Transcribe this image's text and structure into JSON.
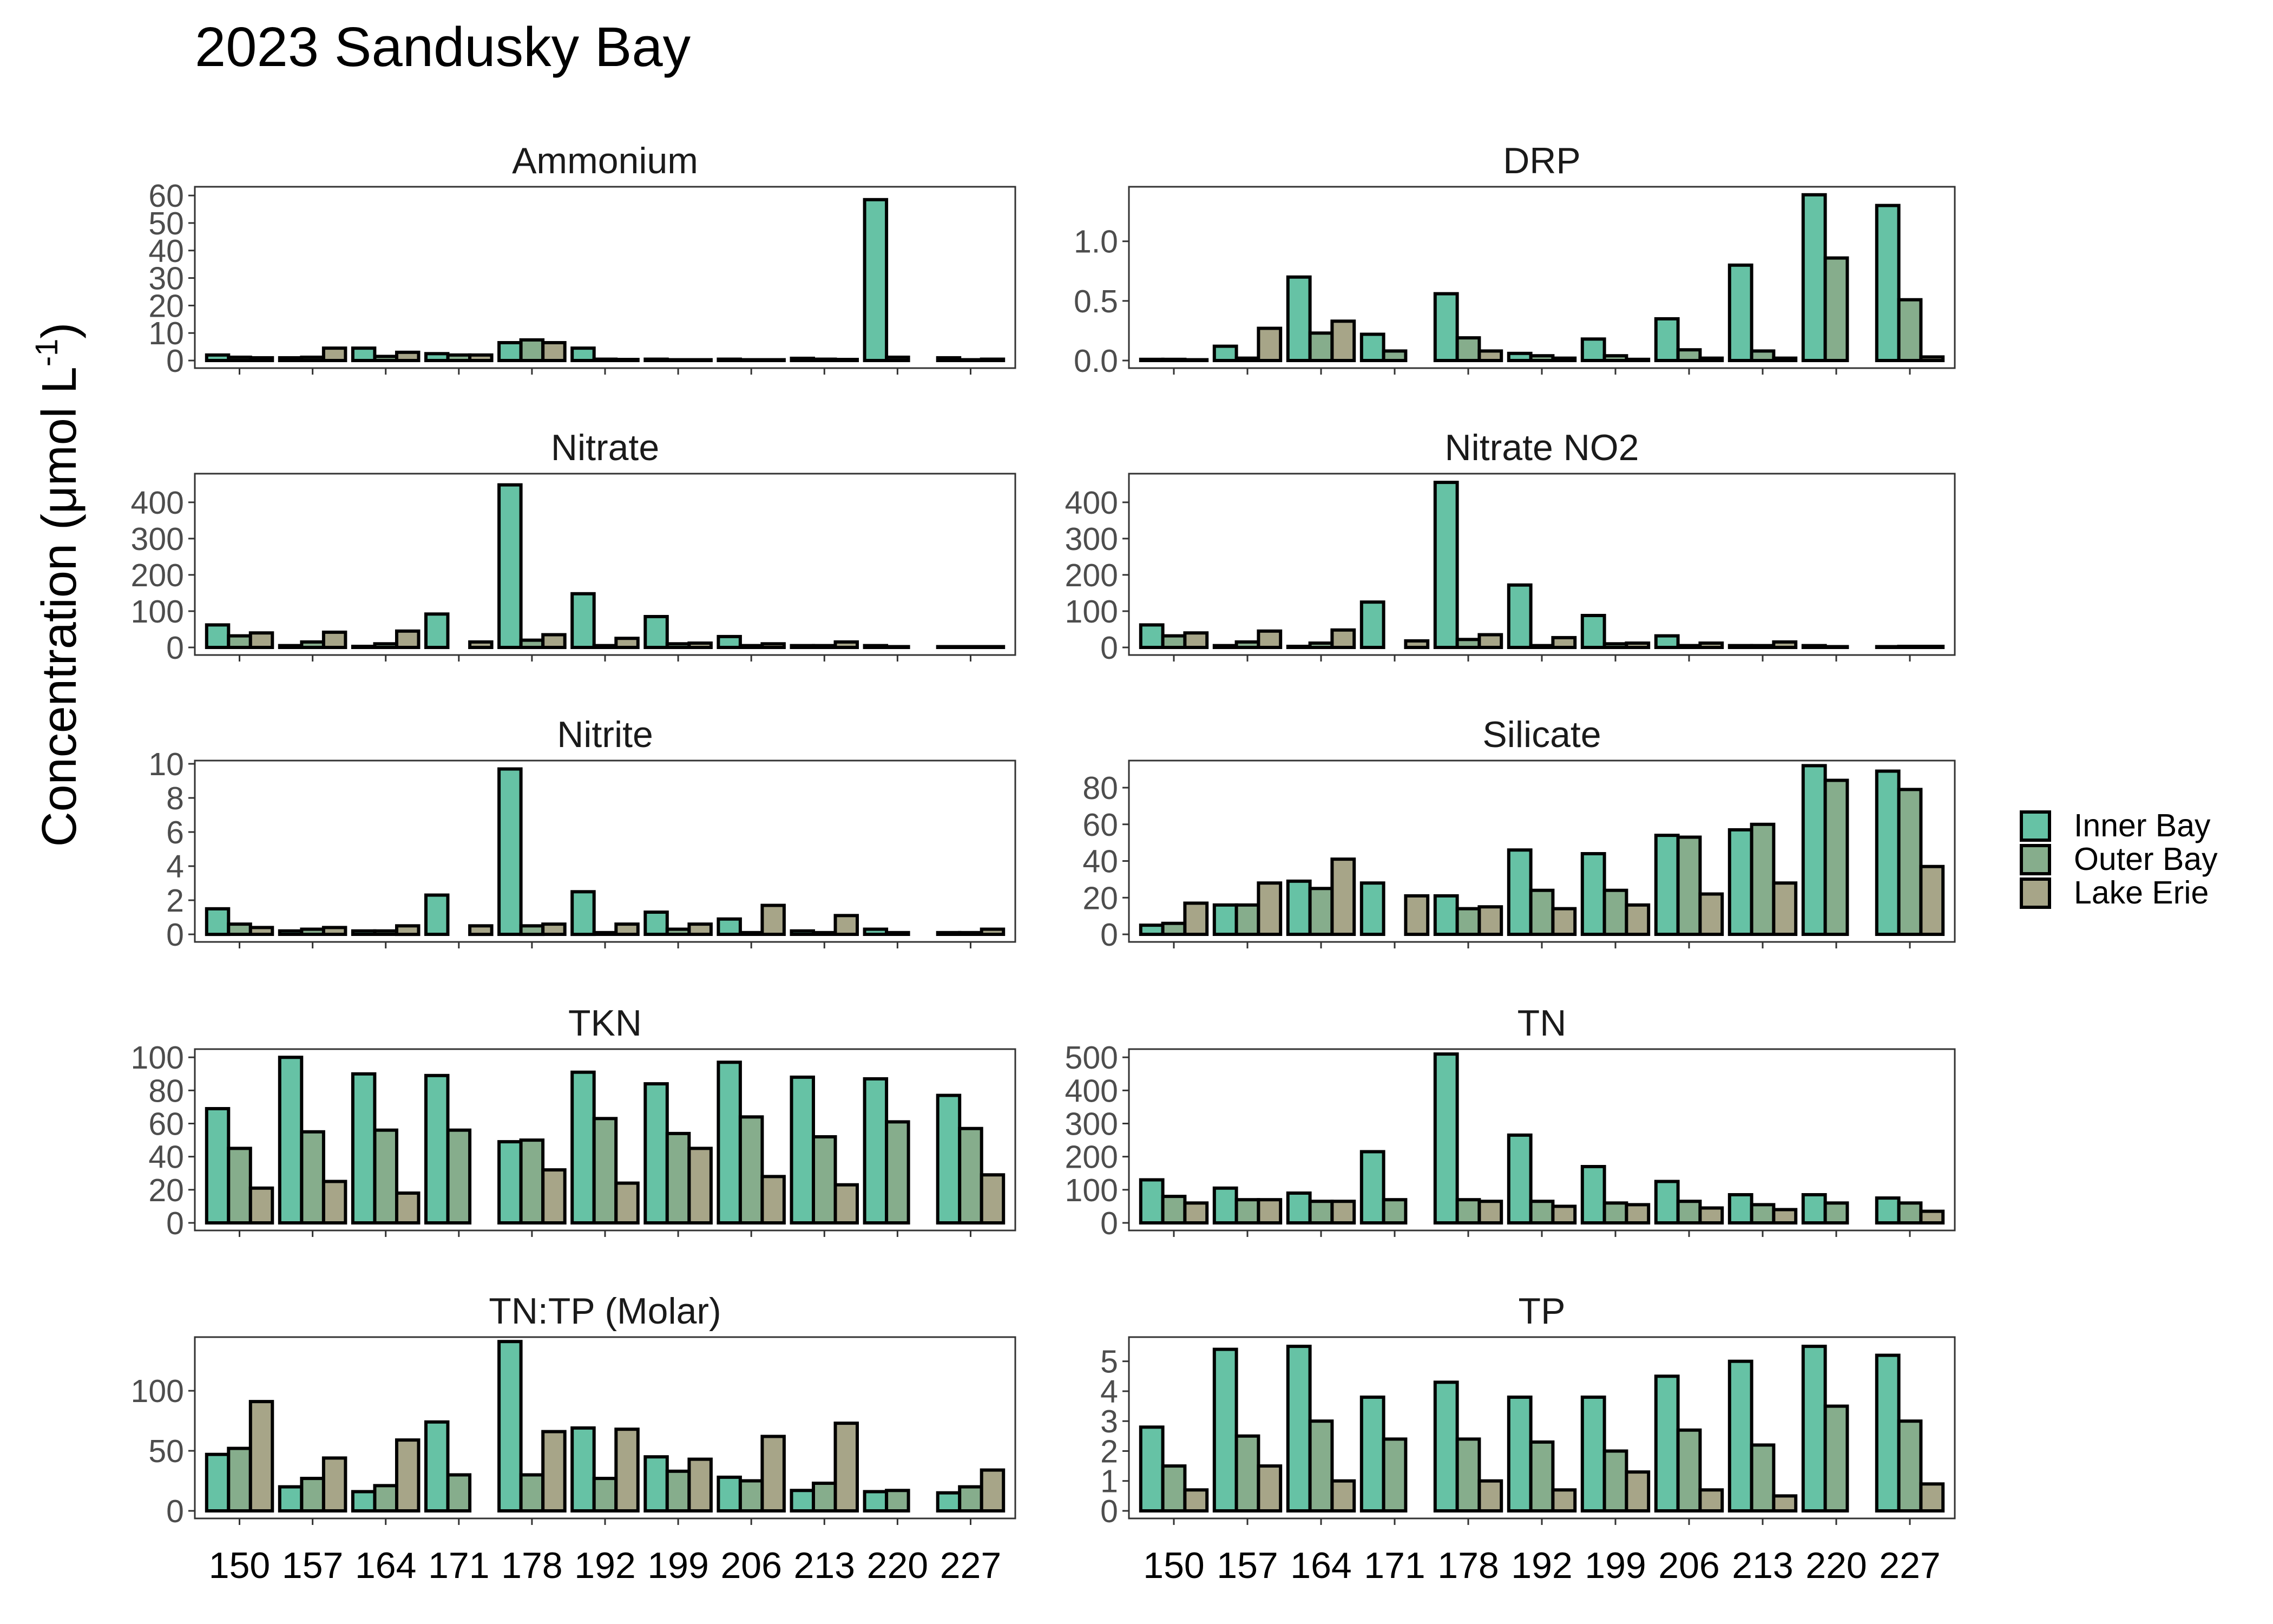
{
  "figure": {
    "title": "2023 Sandusky Bay",
    "ylabel": "Concentration (μmol L",
    "ylabel_sup": "-1",
    "ylabel_close": ")"
  },
  "chart_data": {
    "type": "bar",
    "grouping": "dodged",
    "categories": [
      "150",
      "157",
      "164",
      "171",
      "178",
      "192",
      "199",
      "206",
      "213",
      "220",
      "227"
    ],
    "series_names": [
      "Inner Bay",
      "Outer Bay",
      "Lake Erie"
    ],
    "colors": {
      "Inner Bay": "#66c2a5",
      "Outer Bay": "#86ad8c",
      "Lake Erie": "#a7a588"
    },
    "legend": {
      "position": "right",
      "entries": [
        "Inner Bay",
        "Outer Bay",
        "Lake Erie"
      ]
    },
    "grid": false,
    "x_tick_labels_shown_on": [
      "TN:TP (Molar)",
      "TP"
    ],
    "panels": [
      {
        "title": "Ammonium",
        "ylim": [
          0,
          62
        ],
        "yticks": [
          0,
          10,
          20,
          30,
          40,
          50,
          60
        ],
        "ytick_labels": [
          "0",
          "10",
          "20",
          "30",
          "40",
          "50",
          "60"
        ],
        "series": [
          {
            "name": "Inner Bay",
            "values": [
              2.0,
              1.0,
              4.5,
              2.5,
              6.5,
              4.5,
              0.5,
              0.5,
              0.8,
              58.5,
              1.0
            ]
          },
          {
            "name": "Outer Bay",
            "values": [
              1.2,
              1.2,
              1.5,
              2.0,
              7.5,
              0.5,
              0.3,
              0.2,
              0.5,
              1.2,
              0.3
            ]
          },
          {
            "name": "Lake Erie",
            "values": [
              1.0,
              4.5,
              3.0,
              2.0,
              6.5,
              0.4,
              0.3,
              0.3,
              0.4,
              null,
              0.5
            ]
          }
        ]
      },
      {
        "title": "DRP",
        "ylim": [
          0,
          1.43
        ],
        "yticks": [
          0,
          0.5,
          1.0
        ],
        "ytick_labels": [
          "0.0",
          "0.5",
          "1.0"
        ],
        "series": [
          {
            "name": "Inner Bay",
            "values": [
              0.01,
              0.12,
              0.7,
              0.22,
              0.56,
              0.06,
              0.18,
              0.35,
              0.8,
              1.39,
              1.3
            ]
          },
          {
            "name": "Outer Bay",
            "values": [
              0.01,
              0.02,
              0.23,
              0.08,
              0.19,
              0.04,
              0.04,
              0.09,
              0.08,
              0.86,
              0.51
            ]
          },
          {
            "name": "Lake Erie",
            "values": [
              0.0,
              0.27,
              0.33,
              null,
              0.08,
              0.02,
              0.01,
              0.02,
              0.02,
              null,
              0.03
            ]
          }
        ]
      },
      {
        "title": "Nitrate",
        "ylim": [
          0,
          470
        ],
        "yticks": [
          0,
          100,
          200,
          300,
          400
        ],
        "ytick_labels": [
          "0",
          "100",
          "200",
          "300",
          "400"
        ],
        "series": [
          {
            "name": "Inner Bay",
            "values": [
              62,
              5,
              3,
              92,
              448,
              148,
              85,
              30,
              5,
              5,
              2
            ]
          },
          {
            "name": "Outer Bay",
            "values": [
              32,
              15,
              10,
              null,
              20,
              5,
              10,
              5,
              5,
              2,
              2
            ]
          },
          {
            "name": "Lake Erie",
            "values": [
              40,
              42,
              45,
              15,
              35,
              25,
              12,
              10,
              15,
              null,
              2
            ]
          }
        ]
      },
      {
        "title": "Nitrate NO2",
        "ylim": [
          0,
          470
        ],
        "yticks": [
          0,
          100,
          200,
          300,
          400
        ],
        "ytick_labels": [
          "0",
          "100",
          "200",
          "300",
          "400"
        ],
        "series": [
          {
            "name": "Inner Bay",
            "values": [
              62,
              5,
              3,
              125,
              455,
              172,
              88,
              32,
              5,
              5,
              2
            ]
          },
          {
            "name": "Outer Bay",
            "values": [
              32,
              15,
              12,
              null,
              22,
              5,
              10,
              5,
              5,
              2,
              3
            ]
          },
          {
            "name": "Lake Erie",
            "values": [
              40,
              45,
              48,
              18,
              35,
              27,
              12,
              12,
              15,
              null,
              3
            ]
          }
        ]
      },
      {
        "title": "Nitrite",
        "ylim": [
          0,
          10
        ],
        "yticks": [
          0,
          2,
          4,
          6,
          8,
          10
        ],
        "ytick_labels": [
          "0",
          "2",
          "4",
          "6",
          "8",
          "10"
        ],
        "series": [
          {
            "name": "Inner Bay",
            "values": [
              1.5,
              0.2,
              0.2,
              2.3,
              9.7,
              2.5,
              1.3,
              0.9,
              0.2,
              0.3,
              0.1
            ]
          },
          {
            "name": "Outer Bay",
            "values": [
              0.6,
              0.3,
              0.2,
              null,
              0.5,
              0.1,
              0.3,
              0.1,
              0.1,
              0.1,
              0.1
            ]
          },
          {
            "name": "Lake Erie",
            "values": [
              0.4,
              0.4,
              0.5,
              0.5,
              0.6,
              0.6,
              0.6,
              1.7,
              1.1,
              null,
              0.3
            ]
          }
        ]
      },
      {
        "title": "Silicate",
        "ylim": [
          0,
          93
        ],
        "yticks": [
          0,
          20,
          40,
          60,
          80
        ],
        "ytick_labels": [
          "0",
          "20",
          "40",
          "60",
          "80"
        ],
        "series": [
          {
            "name": "Inner Bay",
            "values": [
              5,
              16,
              29,
              28,
              21,
              46,
              44,
              54,
              57,
              92,
              89
            ]
          },
          {
            "name": "Outer Bay",
            "values": [
              6,
              16,
              25,
              null,
              14,
              24,
              24,
              53,
              60,
              84,
              79
            ]
          },
          {
            "name": "Lake Erie",
            "values": [
              17,
              28,
              41,
              21,
              15,
              14,
              16,
              22,
              28,
              null,
              37
            ]
          }
        ]
      },
      {
        "title": "TKN",
        "ylim": [
          0,
          103
        ],
        "yticks": [
          0,
          20,
          40,
          60,
          80,
          100
        ],
        "ytick_labels": [
          "0",
          "20",
          "40",
          "60",
          "80",
          "100"
        ],
        "series": [
          {
            "name": "Inner Bay",
            "values": [
              69,
              100,
              90,
              89,
              49,
              91,
              84,
              97,
              88,
              87,
              77
            ]
          },
          {
            "name": "Outer Bay",
            "values": [
              45,
              55,
              56,
              56,
              50,
              63,
              54,
              64,
              52,
              61,
              57
            ]
          },
          {
            "name": "Lake Erie",
            "values": [
              21,
              25,
              18,
              null,
              32,
              24,
              45,
              28,
              23,
              null,
              29
            ]
          }
        ]
      },
      {
        "title": "TN",
        "ylim": [
          0,
          515
        ],
        "yticks": [
          0,
          100,
          200,
          300,
          400,
          500
        ],
        "ytick_labels": [
          "0",
          "100",
          "200",
          "300",
          "400",
          "500"
        ],
        "series": [
          {
            "name": "Inner Bay",
            "values": [
              130,
              105,
              90,
              215,
              510,
              265,
              170,
              125,
              85,
              85,
              75
            ]
          },
          {
            "name": "Outer Bay",
            "values": [
              80,
              70,
              65,
              70,
              70,
              65,
              60,
              65,
              55,
              60,
              60
            ]
          },
          {
            "name": "Lake Erie",
            "values": [
              60,
              70,
              65,
              null,
              65,
              50,
              55,
              45,
              40,
              null,
              35
            ]
          }
        ]
      },
      {
        "title": "TN:TP (Molar)",
        "ylim": [
          0,
          142
        ],
        "yticks": [
          0,
          50,
          100
        ],
        "ytick_labels": [
          "0",
          "50",
          "100"
        ],
        "series": [
          {
            "name": "Inner Bay",
            "values": [
              47,
              20,
              16,
              74,
              141,
              69,
              45,
              28,
              17,
              16,
              15
            ]
          },
          {
            "name": "Outer Bay",
            "values": [
              52,
              27,
              21,
              30,
              30,
              27,
              33,
              25,
              23,
              17,
              20
            ]
          },
          {
            "name": "Lake Erie",
            "values": [
              91,
              44,
              59,
              null,
              66,
              68,
              43,
              62,
              73,
              null,
              34
            ]
          }
        ]
      },
      {
        "title": "TP",
        "ylim": [
          0,
          5.7
        ],
        "yticks": [
          0,
          1,
          2,
          3,
          4,
          5
        ],
        "ytick_labels": [
          "0",
          "1",
          "2",
          "3",
          "4",
          "5"
        ],
        "series": [
          {
            "name": "Inner Bay",
            "values": [
              2.8,
              5.4,
              5.5,
              3.8,
              4.3,
              3.8,
              3.8,
              4.5,
              5.0,
              5.5,
              5.2
            ]
          },
          {
            "name": "Outer Bay",
            "values": [
              1.5,
              2.5,
              3.0,
              2.4,
              2.4,
              2.3,
              2.0,
              2.7,
              2.2,
              3.5,
              3.0
            ]
          },
          {
            "name": "Lake Erie",
            "values": [
              0.7,
              1.5,
              1.0,
              null,
              1.0,
              0.7,
              1.3,
              0.7,
              0.5,
              null,
              0.9
            ]
          }
        ]
      }
    ]
  }
}
